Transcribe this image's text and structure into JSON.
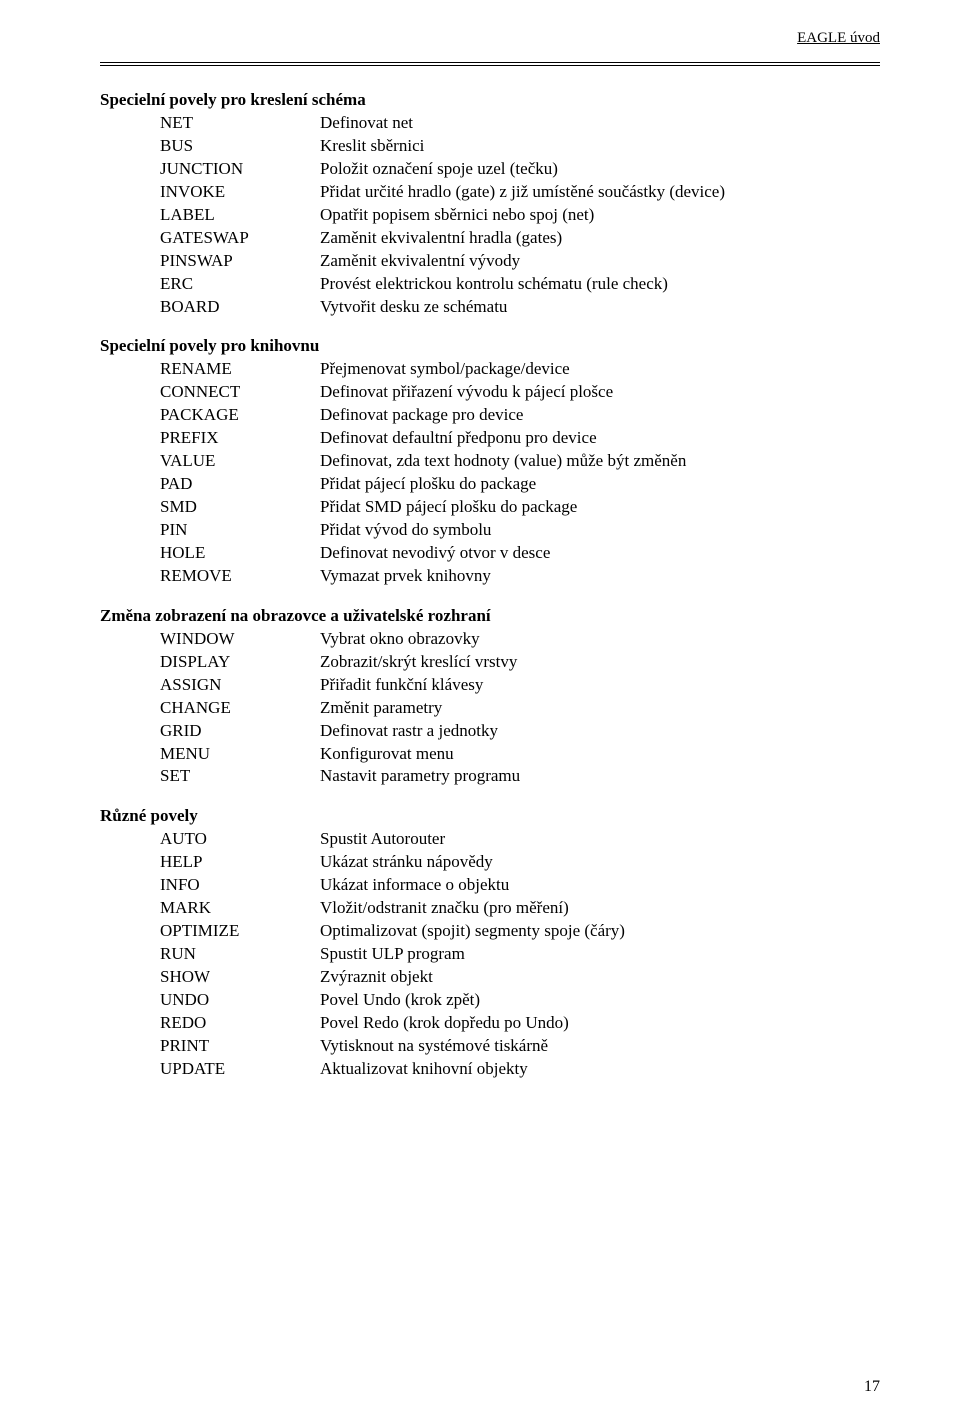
{
  "header": {
    "right_text": "EAGLE úvod"
  },
  "page_number": "17",
  "sections": [
    {
      "heading": "Specielní povely pro kreslení schéma",
      "rows": [
        {
          "cmd": "NET",
          "desc": "Definovat net"
        },
        {
          "cmd": "BUS",
          "desc": "Kreslit sběrnici"
        },
        {
          "cmd": "JUNCTION",
          "desc": "Položit označení spoje uzel (tečku)"
        },
        {
          "cmd": "INVOKE",
          "desc": "Přidat určité hradlo (gate) z již umístěné součástky (device)"
        },
        {
          "cmd": "LABEL",
          "desc": "Opatřit popisem sběrnici nebo spoj (net)"
        },
        {
          "cmd": "GATESWAP",
          "desc": "Zaměnit ekvivalentní hradla (gates)"
        },
        {
          "cmd": "PINSWAP",
          "desc": "Zaměnit ekvivalentní vývody"
        },
        {
          "cmd": "ERC",
          "desc": "Provést elektrickou kontrolu schématu (rule check)"
        },
        {
          "cmd": "BOARD",
          "desc": "Vytvořit desku ze schématu"
        }
      ]
    },
    {
      "heading": "Specielní povely pro knihovnu",
      "rows": [
        {
          "cmd": "RENAME",
          "desc": "Přejmenovat symbol/package/device"
        },
        {
          "cmd": "CONNECT",
          "desc": "Definovat přiřazení vývodu k pájecí plošce"
        },
        {
          "cmd": "PACKAGE",
          "desc": "Definovat package pro device"
        },
        {
          "cmd": "PREFIX",
          "desc": "Definovat defaultní předponu pro device"
        },
        {
          "cmd": "VALUE",
          "desc": "Definovat, zda text hodnoty (value) může být změněn"
        },
        {
          "cmd": "PAD",
          "desc": "Přidat pájecí plošku do package"
        },
        {
          "cmd": "SMD",
          "desc": "Přidat SMD pájecí plošku do package"
        },
        {
          "cmd": "PIN",
          "desc": "Přidat vývod do symbolu"
        },
        {
          "cmd": "HOLE",
          "desc": "Definovat nevodivý otvor v desce"
        },
        {
          "cmd": "REMOVE",
          "desc": "Vymazat prvek knihovny"
        }
      ]
    },
    {
      "heading": "Změna zobrazení na obrazovce a uživatelské rozhraní",
      "rows": [
        {
          "cmd": "WINDOW",
          "desc": "Vybrat okno obrazovky"
        },
        {
          "cmd": "DISPLAY",
          "desc": "Zobrazit/skrýt kreslící vrstvy"
        },
        {
          "cmd": "ASSIGN",
          "desc": "Přiřadit funkční klávesy"
        },
        {
          "cmd": "CHANGE",
          "desc": "Změnit parametry"
        },
        {
          "cmd": "GRID",
          "desc": "Definovat rastr a jednotky"
        },
        {
          "cmd": "MENU",
          "desc": "Konfigurovat menu"
        },
        {
          "cmd": "SET",
          "desc": "Nastavit parametry programu"
        }
      ]
    },
    {
      "heading": "Různé povely",
      "rows": [
        {
          "cmd": "AUTO",
          "desc": "Spustit Autorouter"
        },
        {
          "cmd": "HELP",
          "desc": "Ukázat stránku nápovědy"
        },
        {
          "cmd": "INFO",
          "desc": "Ukázat informace o objektu"
        },
        {
          "cmd": "MARK",
          "desc": "Vložit/odstranit značku (pro měření)"
        },
        {
          "cmd": "OPTIMIZE",
          "desc": "Optimalizovat (spojit) segmenty spoje (čáry)"
        },
        {
          "cmd": "RUN",
          "desc": "Spustit ULP program"
        },
        {
          "cmd": "SHOW",
          "desc": "Zvýraznit objekt"
        },
        {
          "cmd": "UNDO",
          "desc": "Povel Undo (krok zpět)"
        },
        {
          "cmd": "REDO",
          "desc": "Povel Redo (krok dopředu po Undo)"
        },
        {
          "cmd": "PRINT",
          "desc": "Vytisknout na systémové tiskárně"
        },
        {
          "cmd": "UPDATE",
          "desc": "Aktualizovat knihovní objekty"
        }
      ]
    }
  ]
}
